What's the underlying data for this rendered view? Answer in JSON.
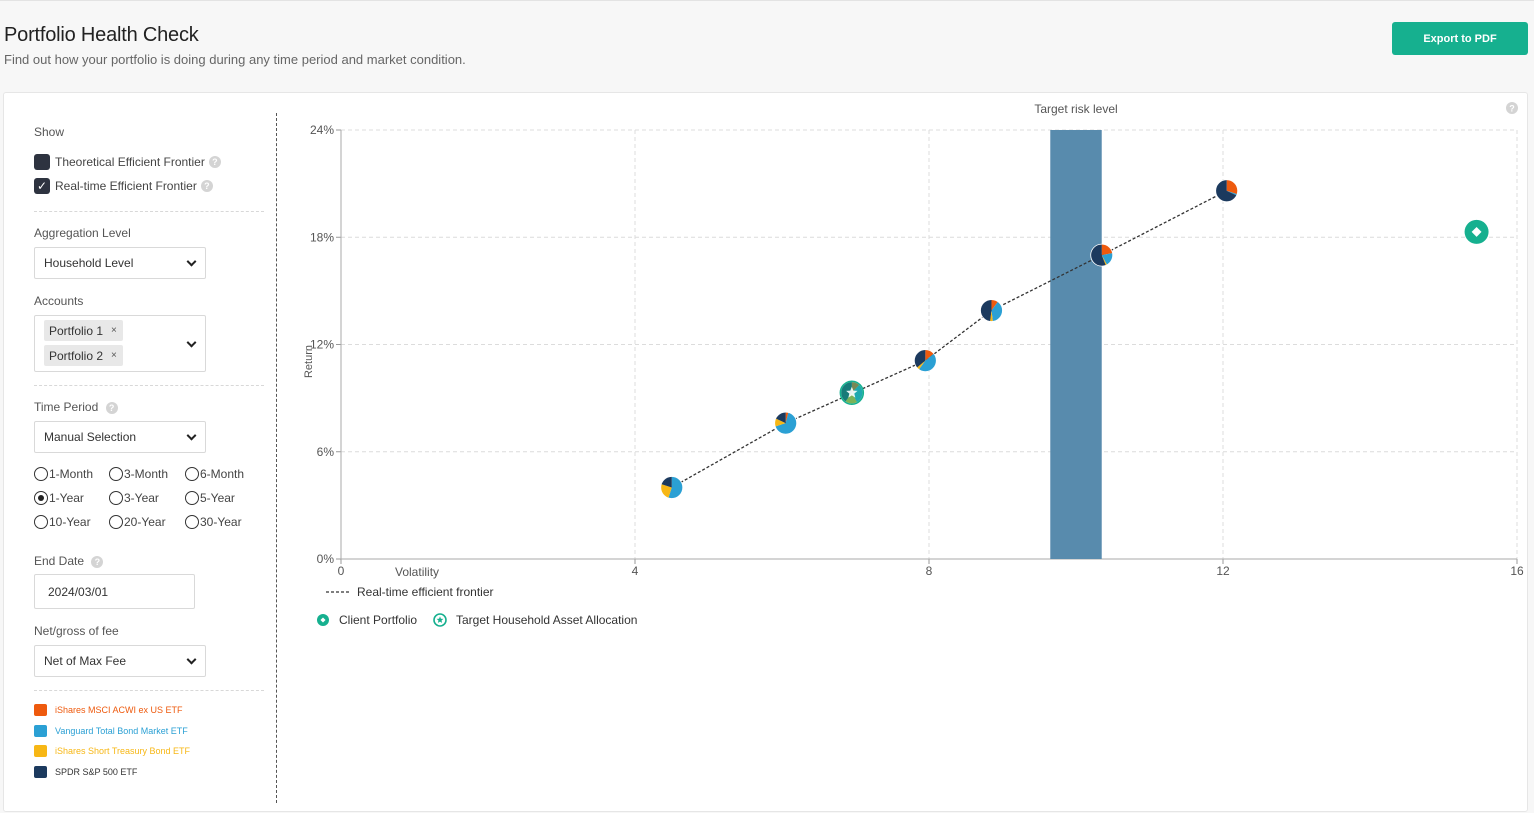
{
  "header": {
    "title": "Portfolio Health Check",
    "subtitle": "Find out how your portfolio is doing during any time period and market condition.",
    "export_label": "Export to PDF"
  },
  "sidebar": {
    "show_label": "Show",
    "theoretical_label": "Theoretical Efficient Frontier",
    "theoretical_checked": false,
    "realtime_label": "Real-time Efficient Frontier",
    "realtime_checked": true,
    "realtime_check_glyph": "✓",
    "help_glyph": "?",
    "aggregation_label": "Aggregation Level",
    "aggregation_value": "Household Level",
    "accounts_label": "Accounts",
    "accounts": [
      "Portfolio 1",
      "Portfolio 2"
    ],
    "tag_remove_glyph": "×",
    "time_period_label": "Time Period",
    "time_period_value": "Manual Selection",
    "periods": [
      "1-Month",
      "3-Month",
      "6-Month",
      "1-Year",
      "3-Year",
      "5-Year",
      "10-Year",
      "20-Year",
      "30-Year"
    ],
    "selected_period": "1-Year",
    "end_date_label": "End Date",
    "end_date_value": "2024/03/01",
    "fee_label": "Net/gross of fee",
    "fee_value": "Net of Max Fee",
    "assets": [
      {
        "name": "iShares MSCI ACWI ex US ETF",
        "color": "#ee5a0e"
      },
      {
        "name": "Vanguard Total Bond Market ETF",
        "color": "#2ba0d4"
      },
      {
        "name": "iShares Short Treasury Bond ETF",
        "color": "#f7b715"
      },
      {
        "name": "SPDR S&P 500 ETF",
        "color": "#1c3a5e"
      }
    ]
  },
  "chart_data": {
    "type": "scatter",
    "band_label": "Target risk level",
    "band_color": "#588bad",
    "target_risk_range": [
      9.65,
      10.35
    ],
    "xlabel": "Volatility",
    "ylabel": "Return",
    "xlim": [
      0,
      16
    ],
    "ylim": [
      0,
      24
    ],
    "x_ticks": [
      "0",
      "4",
      "8",
      "12",
      "16"
    ],
    "y_ticks": [
      "0%",
      "6%",
      "12%",
      "18%",
      "24%"
    ],
    "help_glyph": "?",
    "frontier_name": "Real-time efficient frontier",
    "frontier": [
      {
        "x": 4.5,
        "y": 4.0,
        "mix": [
          0.0,
          0.55,
          0.25,
          0.2
        ]
      },
      {
        "x": 6.05,
        "y": 7.6,
        "mix": [
          0.04,
          0.66,
          0.12,
          0.18
        ]
      },
      {
        "x": 7.95,
        "y": 11.1,
        "mix": [
          0.14,
          0.46,
          0.04,
          0.36
        ]
      },
      {
        "x": 8.85,
        "y": 13.9,
        "mix": [
          0.1,
          0.38,
          0.04,
          0.48
        ]
      },
      {
        "x": 10.35,
        "y": 17.0,
        "mix": [
          0.22,
          0.2,
          0.02,
          0.56
        ]
      },
      {
        "x": 12.05,
        "y": 20.6,
        "mix": [
          0.3,
          0.02,
          0.0,
          0.68
        ]
      }
    ],
    "target_allocation": {
      "name": "Target Household Asset Allocation",
      "x": 6.95,
      "y": 9.3
    },
    "client_portfolio": {
      "name": "Client Portfolio",
      "x": 15.45,
      "y": 18.3
    },
    "marker_color": "#16b08f"
  }
}
